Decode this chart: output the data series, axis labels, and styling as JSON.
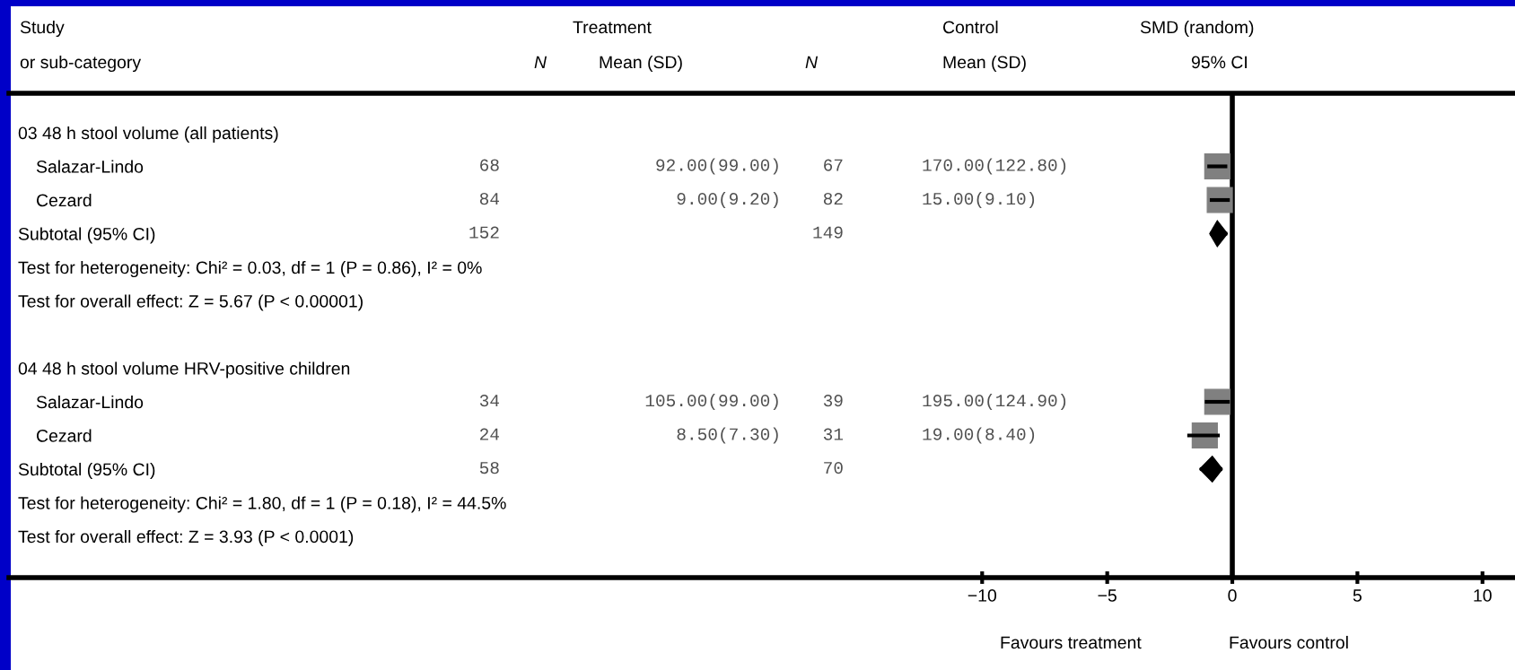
{
  "chart_data": {
    "type": "scatter",
    "orientation": "horizontal",
    "categories": [
      "03 48 h stool volume (all patients)",
      "Salazar-Lindo",
      "Cezard",
      "Subtotal (95% CI)",
      "Test for heterogeneity: Chi² = 0.03, df = 1 (P = 0.86), I² = 0%",
      "Test for overall effect: Z = 5.67 (P < 0.00001)",
      null,
      "04 48 h stool volume HRV-positive children",
      "Salazar-Lindo",
      "Cezard",
      "Subtotal (95% CI)",
      "Test for heterogeneity: Chi² = 1.80, df = 1 (P = 0.18), I² = 44.5%",
      "Test for overall effect: Z = 3.93 (P < 0.0001)"
    ],
    "cell_labels": [
      [
        null,
        null,
        null,
        null
      ],
      [
        "68",
        "92.00(99.00)",
        "67",
        "170.00(122.80)"
      ],
      [
        "84",
        "9.00(9.20)",
        "82",
        "15.00(9.10)"
      ],
      [
        "152",
        null,
        "149",
        null
      ],
      [
        null,
        null,
        null,
        null
      ],
      [
        null,
        null,
        null,
        null
      ],
      [
        null,
        null,
        null,
        null
      ],
      [
        null,
        null,
        null,
        null
      ],
      [
        "34",
        "105.00(99.00)",
        "39",
        "195.00(124.90)"
      ],
      [
        "24",
        "8.50(7.30)",
        "31",
        "19.00(8.40)"
      ],
      [
        "58",
        null,
        "70",
        null
      ],
      [
        null,
        null,
        null,
        null
      ],
      [
        null,
        null,
        null,
        null
      ]
    ],
    "series": [
      {
        "color": "#808080",
        "marker": "square",
        "values": [
          null,
          -0.6,
          -0.5,
          null,
          null,
          null,
          null,
          null,
          -0.6,
          -1.1,
          null,
          null,
          null
        ],
        "errors": [
          null,
          [
            -1.0,
            -0.2
          ],
          [
            -0.9,
            -0.1
          ],
          null,
          null,
          null,
          null,
          null,
          [
            -1.1,
            -0.1
          ],
          [
            -1.8,
            -0.5
          ],
          null,
          null,
          null
        ]
      },
      {
        "color": "#000000",
        "marker": "diamond",
        "values": [
          null,
          null,
          null,
          -0.6,
          null,
          null,
          null,
          null,
          null,
          null,
          -0.8,
          null,
          null
        ],
        "errors": [
          null,
          null,
          null,
          [
            -0.9,
            -0.2
          ],
          null,
          null,
          null,
          null,
          null,
          null,
          [
            -1.3,
            -0.4
          ],
          null,
          null
        ]
      }
    ],
    "annotations": [
      "Study",
      "or sub-category",
      "N",
      "Treatment",
      "Mean (SD)",
      "N",
      "Control",
      "Mean (SD)",
      "SMD (random)",
      "95% CI",
      "Favours treatment",
      "Favours control"
    ],
    "xlim": [
      -48.9,
      11.3
    ],
    "xticks": [
      {
        "value": -10,
        "label": "−10"
      },
      {
        "value": -5,
        "label": "−5"
      },
      0,
      5,
      10
    ],
    "ref_lines": [
      {
        "axis": "x",
        "value": 0,
        "color": "#000000"
      }
    ]
  }
}
